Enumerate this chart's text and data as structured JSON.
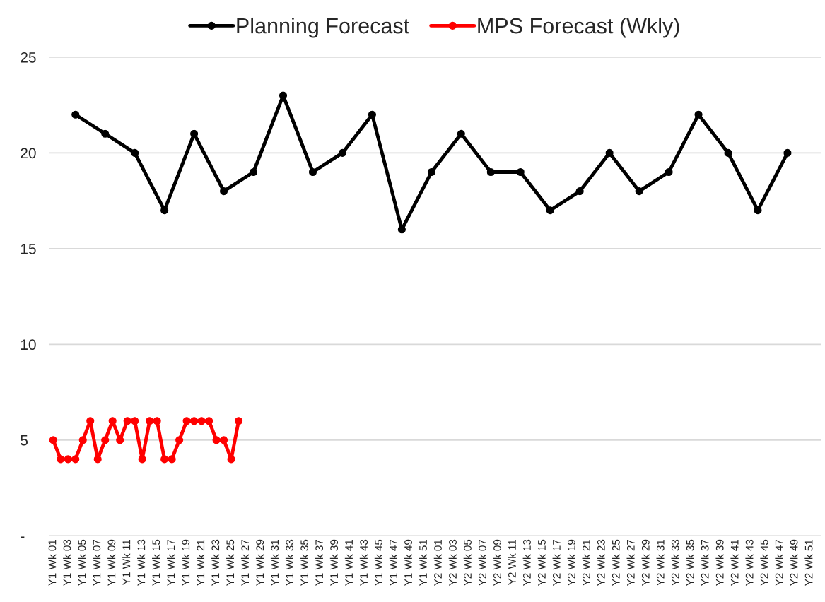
{
  "chart_data": {
    "type": "line",
    "categories": [
      "Y1 Wk 01",
      null,
      "Y1 Wk 03",
      null,
      "Y1 Wk 05",
      null,
      "Y1 Wk 07",
      null,
      "Y1 Wk 09",
      null,
      "Y1 Wk 11",
      null,
      "Y1 Wk 13",
      null,
      "Y1 Wk 15",
      null,
      "Y1 Wk 17",
      null,
      "Y1 Wk 19",
      null,
      "Y1 Wk 21",
      null,
      "Y1 Wk 23",
      null,
      "Y1 Wk 25",
      null,
      "Y1 Wk 27",
      null,
      "Y1 Wk 29",
      null,
      "Y1 Wk 31",
      null,
      "Y1 Wk 33",
      null,
      "Y1 Wk 35",
      null,
      "Y1 Wk 37",
      null,
      "Y1 Wk 39",
      null,
      "Y1 Wk 41",
      null,
      "Y1 Wk 43",
      null,
      "Y1 Wk 45",
      null,
      "Y1 Wk 47",
      null,
      "Y1 Wk 49",
      null,
      "Y1 Wk 51",
      null,
      "Y2 Wk 01",
      null,
      "Y2 Wk 03",
      null,
      "Y2 Wk 05",
      null,
      "Y2 Wk 07",
      null,
      "Y2 Wk 09",
      null,
      "Y2 Wk 11",
      null,
      "Y2 Wk 13",
      null,
      "Y2 Wk 15",
      null,
      "Y2 Wk 17",
      null,
      "Y2 Wk 19",
      null,
      "Y2 Wk 21",
      null,
      "Y2 Wk 23",
      null,
      "Y2 Wk 25",
      null,
      "Y2 Wk 27",
      null,
      "Y2 Wk 29",
      null,
      "Y2 Wk 31",
      null,
      "Y2 Wk 33",
      null,
      "Y2 Wk 35",
      null,
      "Y2 Wk 37",
      null,
      "Y2 Wk 39",
      null,
      "Y2 Wk 41",
      null,
      "Y2 Wk 43",
      null,
      "Y2 Wk 45",
      null,
      "Y2 Wk 47",
      null,
      "Y2 Wk 49",
      null,
      "Y2 Wk 51",
      null
    ],
    "series": [
      {
        "name": "Planning Forecast",
        "color": "#000000",
        "values": [
          null,
          null,
          null,
          22,
          null,
          null,
          null,
          21,
          null,
          null,
          null,
          20,
          null,
          null,
          null,
          17,
          null,
          null,
          null,
          21,
          null,
          null,
          null,
          18,
          null,
          null,
          null,
          19,
          null,
          null,
          null,
          23,
          null,
          null,
          null,
          19,
          null,
          null,
          null,
          20,
          null,
          null,
          null,
          22,
          null,
          null,
          null,
          16,
          null,
          null,
          null,
          19,
          null,
          null,
          null,
          21,
          null,
          null,
          null,
          19,
          null,
          null,
          null,
          19,
          null,
          null,
          null,
          17,
          null,
          null,
          null,
          18,
          null,
          null,
          null,
          20,
          null,
          null,
          null,
          18,
          null,
          null,
          null,
          19,
          null,
          null,
          null,
          22,
          null,
          null,
          null,
          20,
          null,
          null,
          null,
          17,
          null,
          null,
          null,
          20,
          null,
          null,
          null,
          null
        ]
      },
      {
        "name": "MPS Forecast (Wkly)",
        "color": "#ff0000",
        "values": [
          5,
          4,
          4,
          4,
          5,
          6,
          4,
          5,
          6,
          5,
          6,
          6,
          4,
          6,
          6,
          4,
          4,
          5,
          6,
          6,
          6,
          6,
          5,
          5,
          4,
          6,
          null,
          null,
          null,
          null,
          null,
          null,
          null,
          null,
          null,
          null,
          null,
          null,
          null,
          null,
          null,
          null,
          null,
          null,
          null,
          null,
          null,
          null,
          null,
          null,
          null,
          null,
          null,
          null,
          null,
          null,
          null,
          null,
          null,
          null,
          null,
          null,
          null,
          null,
          null,
          null,
          null,
          null,
          null,
          null,
          null,
          null,
          null,
          null,
          null,
          null,
          null,
          null,
          null,
          null,
          null,
          null,
          null,
          null,
          null,
          null,
          null,
          null,
          null,
          null,
          null,
          null,
          null,
          null,
          null,
          null,
          null,
          null,
          null,
          null,
          null,
          null,
          null,
          null
        ]
      }
    ],
    "ylim": [
      0,
      25
    ],
    "yticks": [
      {
        "value": 0,
        "label": "-"
      },
      5,
      10,
      15,
      20,
      25
    ],
    "grid": "y",
    "legend": "top",
    "marker": "circle",
    "line_style": "solid"
  }
}
